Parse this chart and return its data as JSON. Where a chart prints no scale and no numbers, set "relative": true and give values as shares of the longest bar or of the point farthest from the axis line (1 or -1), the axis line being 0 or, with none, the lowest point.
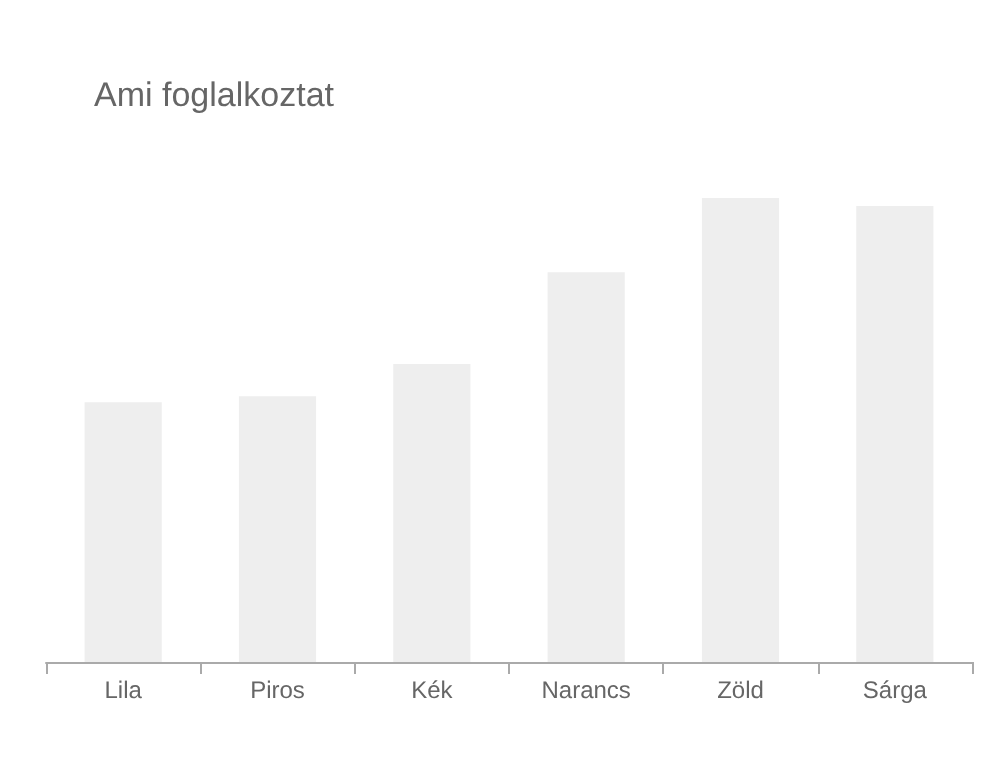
{
  "chart_data": {
    "type": "bar",
    "title": "Ami foglalkoztat",
    "relative": true,
    "categories": [
      "Lila",
      "Piros",
      "Kék",
      "Narancs",
      "Zöld",
      "Sárga"
    ],
    "values": [
      0.56,
      0.573,
      0.642,
      0.84,
      1,
      0.983
    ],
    "color": "#eeeeee"
  }
}
